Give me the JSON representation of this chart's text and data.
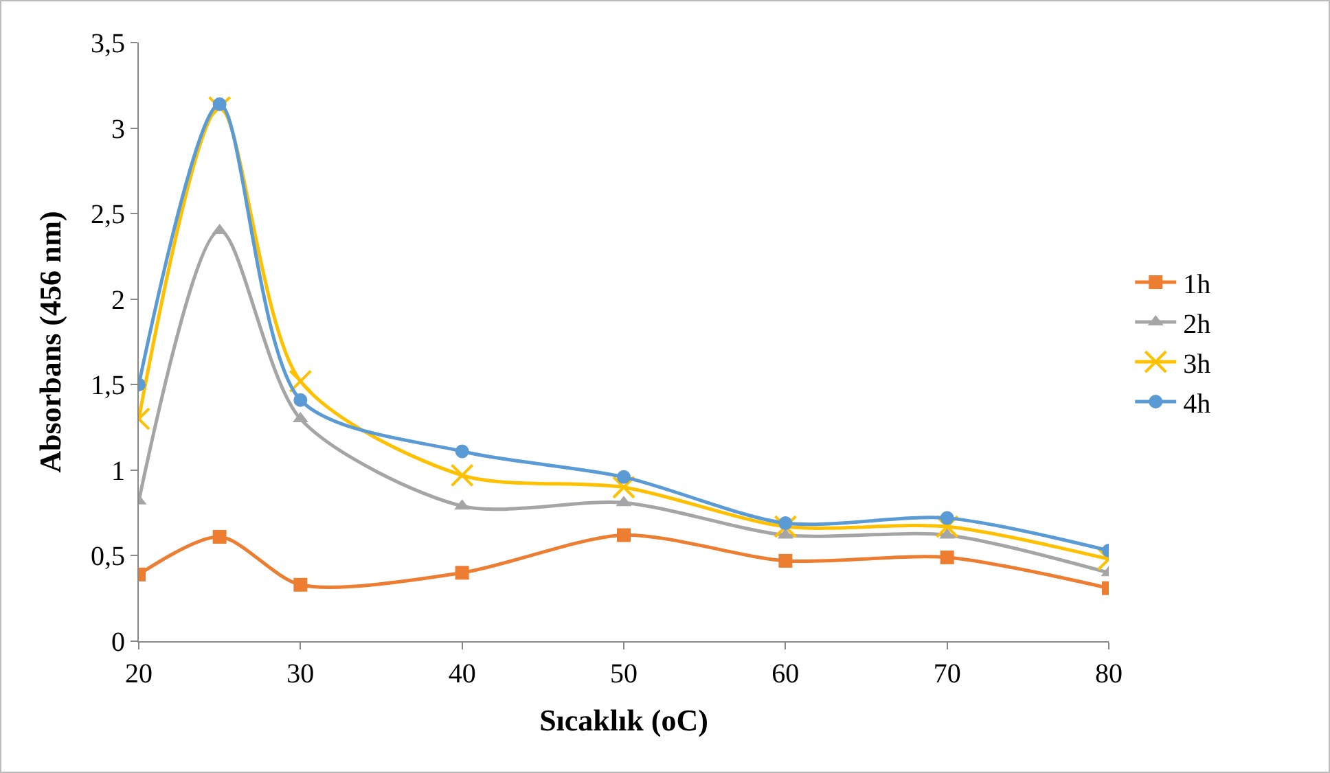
{
  "chart_data": {
    "type": "line",
    "xlabel": "Sıcaklık (oC)",
    "ylabel": "Absorbans (456 nm)",
    "x": [
      20,
      25,
      30,
      40,
      50,
      60,
      70,
      80
    ],
    "series": [
      {
        "name": "1h",
        "color": "#ed7d31",
        "marker": "square",
        "values": [
          0.39,
          0.61,
          0.33,
          0.4,
          0.62,
          0.47,
          0.49,
          0.31
        ]
      },
      {
        "name": "2h",
        "color": "#a5a5a5",
        "marker": "triangle",
        "values": [
          0.82,
          2.4,
          1.3,
          0.79,
          0.81,
          0.62,
          0.62,
          0.4
        ]
      },
      {
        "name": "3h",
        "color": "#ffc000",
        "marker": "cross",
        "values": [
          1.3,
          3.12,
          1.52,
          0.97,
          0.9,
          0.67,
          0.67,
          0.48
        ]
      },
      {
        "name": "4h",
        "color": "#5b9bd5",
        "marker": "circle",
        "values": [
          1.5,
          3.14,
          1.41,
          1.11,
          0.96,
          0.69,
          0.72,
          0.53
        ]
      }
    ],
    "xlim": [
      20,
      80
    ],
    "xticks": [
      20,
      30,
      40,
      50,
      60,
      70,
      80
    ],
    "ylim": [
      0,
      3.5
    ],
    "yticks": [
      0,
      {
        "value": 0.5,
        "label": "0,5"
      },
      1,
      {
        "value": 1.5,
        "label": "1,5"
      },
      2,
      {
        "value": 2.5,
        "label": "2,5"
      },
      3,
      {
        "value": 3.5,
        "label": "3,5"
      }
    ],
    "grid": false,
    "legend": "right",
    "line_style": "solid"
  }
}
